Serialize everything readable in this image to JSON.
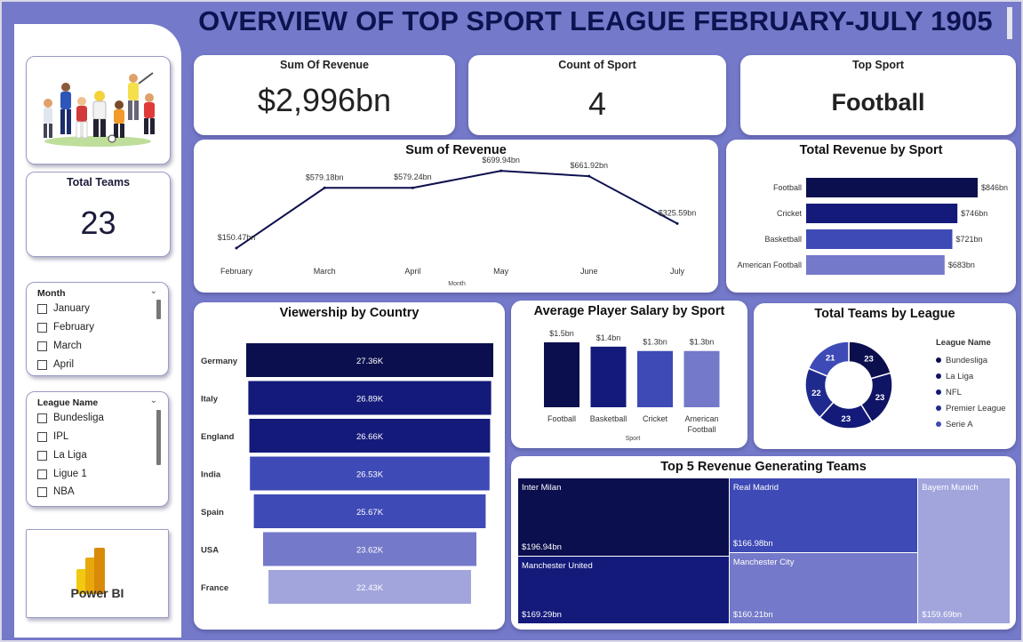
{
  "header": {
    "title": "OVERVIEW OF TOP SPORT LEAGUE FEBRUARY-JULY 1905"
  },
  "kpis": {
    "revenue": {
      "label": "Sum Of Revenue",
      "value": "$2,996bn"
    },
    "count_sport": {
      "label": "Count of Sport",
      "value": "4"
    },
    "top_sport": {
      "label": "Top Sport",
      "value": "Football"
    },
    "total_teams": {
      "label": "Total Teams",
      "value": "23"
    }
  },
  "slicers": {
    "month": {
      "title": "Month",
      "items": [
        "January",
        "February",
        "March",
        "April"
      ]
    },
    "league": {
      "title": "League Name",
      "items": [
        "Bundesliga",
        "IPL",
        "La Liga",
        "Ligue 1",
        "NBA"
      ]
    }
  },
  "logo": {
    "text": "Power BI"
  },
  "colors": {
    "navy": "#0c0f4e",
    "dark": "#131a7a",
    "mid": "#3e4ab5",
    "light": "#7479c9",
    "pale": "#a1a5dc"
  },
  "chart_data": [
    {
      "id": "revenue_line",
      "type": "line",
      "title": "Sum of Revenue",
      "xlabel": "Month",
      "categories": [
        "February",
        "March",
        "April",
        "May",
        "June",
        "July"
      ],
      "values": [
        150.47,
        579.18,
        579.24,
        699.94,
        661.92,
        325.59
      ],
      "labels": [
        "$150.47bn",
        "$579.18bn",
        "$579.24bn",
        "$699.94bn",
        "$661.92bn",
        "$325.59bn"
      ],
      "ylim": [
        100,
        720
      ]
    },
    {
      "id": "revenue_by_sport",
      "type": "bar",
      "orientation": "horizontal",
      "title": "Total Revenue by Sport",
      "categories": [
        "Football",
        "Cricket",
        "Basketball",
        "American Football"
      ],
      "values": [
        846,
        746,
        721,
        683
      ],
      "labels": [
        "$846bn",
        "$746bn",
        "$721bn",
        "$683bn"
      ],
      "colors": [
        "#0c0f4e",
        "#131a7a",
        "#3e4ab5",
        "#7479c9"
      ]
    },
    {
      "id": "viewership_by_country",
      "type": "bar",
      "orientation": "horizontal",
      "subtype": "funnel",
      "title": "Viewership by Country",
      "categories": [
        "Germany",
        "Italy",
        "England",
        "India",
        "Spain",
        "USA",
        "France"
      ],
      "values": [
        27.36,
        26.89,
        26.66,
        26.53,
        25.67,
        23.62,
        22.43
      ],
      "labels": [
        "27.36K",
        "26.89K",
        "26.66K",
        "26.53K",
        "25.67K",
        "23.62K",
        "22.43K"
      ],
      "colors": [
        "#0c0f4e",
        "#131a7a",
        "#131a7a",
        "#3e4ab5",
        "#3e4ab5",
        "#7479c9",
        "#a1a5dc"
      ]
    },
    {
      "id": "avg_salary_by_sport",
      "type": "bar",
      "title": "Average Player Salary by Sport",
      "xlabel": "Sport",
      "categories": [
        "Football",
        "Basketball",
        "Cricket",
        "American Football"
      ],
      "values": [
        1.5,
        1.4,
        1.3,
        1.3
      ],
      "labels": [
        "$1.5bn",
        "$1.4bn",
        "$1.3bn",
        "$1.3bn"
      ],
      "colors": [
        "#0c0f4e",
        "#131a7a",
        "#3e4ab5",
        "#7479c9"
      ]
    },
    {
      "id": "teams_by_league",
      "type": "pie",
      "subtype": "donut",
      "title": "Total Teams by League",
      "legend_title": "League Name",
      "legend_position": "right",
      "categories": [
        "Bundesliga",
        "La Liga",
        "NFL",
        "Premier League",
        "Serie A"
      ],
      "values": [
        23,
        23,
        23,
        22,
        21
      ],
      "colors": [
        "#0c0f4e",
        "#101464",
        "#131a7a",
        "#1f2a8e",
        "#3e4ab5"
      ]
    },
    {
      "id": "top5_teams",
      "type": "treemap",
      "title": "Top 5 Revenue Generating Teams",
      "categories": [
        "Inter Milan",
        "Manchester United",
        "Real Madrid",
        "Manchester City",
        "Bayern Munich"
      ],
      "values": [
        196.94,
        169.29,
        166.98,
        160.21,
        159.69
      ],
      "labels": [
        "$196.94bn",
        "$169.29bn",
        "$166.98bn",
        "$160.21bn",
        "$159.69bn"
      ],
      "colors": [
        "#0c0f4e",
        "#131a7a",
        "#3e4ab5",
        "#7479c9",
        "#a1a5dc"
      ]
    }
  ]
}
